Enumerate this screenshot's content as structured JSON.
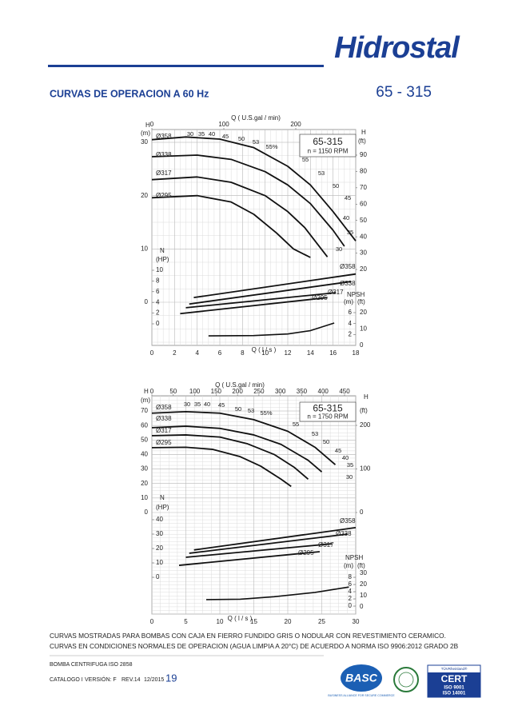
{
  "header": {
    "logo": "Hidrostal",
    "title": "CURVAS DE OPERACION A 60 Hz",
    "model": "65 - 315"
  },
  "charts": [
    {
      "model": "65-315",
      "speed": "n = 1150 RPM",
      "q_lps": {
        "label": "Q ( l / s )",
        "lim": [
          0,
          18
        ],
        "ticks": [
          0,
          2,
          4,
          6,
          8,
          10,
          12,
          14,
          16,
          18
        ]
      },
      "q_gpm": {
        "label": "Q ( U.S.gal / min)",
        "lim": [
          0,
          200
        ],
        "ticks": [
          0,
          100,
          200
        ]
      },
      "h_m": {
        "name": "H",
        "unit": "(m)",
        "lim": [
          0,
          30
        ],
        "ticks": [
          0,
          10,
          20,
          30
        ]
      },
      "h_ft": {
        "name": "H",
        "unit": "(ft)",
        "lim": [
          20,
          90
        ],
        "ticks": [
          20,
          30,
          40,
          50,
          60,
          70,
          80,
          90
        ]
      },
      "n_hp": {
        "name": "N",
        "unit": "(HP)",
        "lim": [
          0,
          10
        ],
        "ticks": [
          0,
          2,
          4,
          6,
          8,
          10
        ]
      },
      "npsh_m": {
        "name": "NPSH",
        "unit": "(m)",
        "lim": [
          0,
          6
        ],
        "ticks": [
          2,
          4,
          6
        ]
      },
      "npsh_ft": {
        "unit": "(ft)",
        "lim": [
          0,
          20
        ],
        "ticks": [
          0,
          10,
          20
        ]
      },
      "efficiency_labels": [
        "30",
        "35",
        "40",
        "45",
        "50",
        "53",
        "55%",
        "55",
        "53",
        "50",
        "45",
        "40",
        "35",
        "30"
      ],
      "head_curves": [
        {
          "name": "Ø358",
          "q": [
            0,
            3,
            6,
            9,
            12,
            14,
            16,
            18
          ],
          "h": [
            30.5,
            31,
            30.6,
            29,
            25.5,
            22,
            17,
            11.5
          ]
        },
        {
          "name": "Ø338",
          "q": [
            0,
            4,
            7,
            10,
            12,
            14,
            16,
            17
          ],
          "h": [
            27.3,
            27.6,
            26.8,
            24.5,
            22,
            18.5,
            13.5,
            10.5
          ]
        },
        {
          "name": "Ø317",
          "q": [
            0,
            4,
            7,
            10,
            12,
            13.5,
            15.5
          ],
          "h": [
            23,
            23.5,
            22.5,
            20,
            17,
            14,
            8.5
          ]
        },
        {
          "name": "Ø295",
          "q": [
            0,
            4,
            7,
            9,
            11,
            12.5,
            14
          ],
          "h": [
            19.6,
            20,
            18.8,
            16.5,
            13,
            10,
            8.4
          ]
        }
      ],
      "power_curves": [
        {
          "name": "Ø358",
          "q": [
            3.7,
            18
          ],
          "n": [
            4.9,
            9.3
          ]
        },
        {
          "name": "Ø338",
          "q": [
            3.3,
            17.6
          ],
          "n": [
            3.7,
            7.9
          ]
        },
        {
          "name": "Ø317",
          "q": [
            3,
            16.2
          ],
          "n": [
            3,
            5.8
          ]
        },
        {
          "name": "Ø295",
          "q": [
            2.5,
            15.5
          ],
          "n": [
            1.9,
            4.9
          ]
        }
      ],
      "npsh_curve": {
        "q": [
          5,
          9,
          12,
          14,
          16.1
        ],
        "npsh": [
          1.75,
          1.8,
          2.1,
          2.7,
          4.1
        ]
      }
    },
    {
      "model": "65-315",
      "speed": "n = 1750 RPM",
      "q_lps": {
        "label": "Q ( l / s )",
        "lim": [
          0,
          30
        ],
        "ticks": [
          0,
          5,
          10,
          15,
          20,
          25,
          30
        ]
      },
      "q_gpm": {
        "label": "Q ( U.S.gal / min)",
        "lim": [
          0,
          450
        ],
        "ticks": [
          0,
          50,
          100,
          150,
          200,
          250,
          300,
          350,
          400,
          450
        ]
      },
      "h_m": {
        "name": "H",
        "unit": "(m)",
        "lim": [
          0,
          70
        ],
        "ticks": [
          0,
          10,
          20,
          30,
          40,
          50,
          60,
          70
        ]
      },
      "h_ft": {
        "name": "H",
        "unit": "(ft)",
        "lim": [
          0,
          200
        ],
        "ticks": [
          0,
          100,
          200
        ]
      },
      "n_hp": {
        "name": "N",
        "unit": "(HP)",
        "lim": [
          0,
          40
        ],
        "ticks": [
          0,
          10,
          20,
          30,
          40
        ]
      },
      "npsh_m": {
        "name": "NPSH",
        "unit": "(m)",
        "lim": [
          0,
          8
        ],
        "ticks": [
          0,
          2,
          4,
          6,
          8
        ]
      },
      "npsh_ft": {
        "unit": "(ft)",
        "lim": [
          0,
          30
        ],
        "ticks": [
          0,
          10,
          20,
          30
        ]
      },
      "efficiency_labels": [
        "30",
        "35",
        "40",
        "45",
        "50",
        "53",
        "55%",
        "55",
        "53",
        "50",
        "45",
        "40",
        "35",
        "30"
      ],
      "head_curves": [
        {
          "name": "Ø358",
          "q": [
            0,
            5,
            10,
            15,
            20,
            24,
            27
          ],
          "h": [
            68.5,
            69.5,
            68.5,
            64,
            56,
            45,
            33
          ]
        },
        {
          "name": "Ø338",
          "q": [
            0,
            5,
            10,
            15,
            19,
            23,
            25
          ],
          "h": [
            58.5,
            59.5,
            58,
            53.5,
            47,
            36,
            28
          ]
        },
        {
          "name": "Ø317",
          "q": [
            0,
            5,
            10,
            14,
            18,
            21,
            23
          ],
          "h": [
            53,
            53.5,
            52,
            47.5,
            40,
            31,
            23
          ]
        },
        {
          "name": "Ø295",
          "q": [
            0,
            5,
            9,
            13,
            16,
            19,
            20.5
          ],
          "h": [
            44.7,
            45,
            43.5,
            38.5,
            32,
            23,
            18
          ]
        }
      ],
      "power_curves": [
        {
          "name": "Ø358",
          "q": [
            6.2,
            30
          ],
          "n": [
            19,
            34.5
          ]
        },
        {
          "name": "Ø338",
          "q": [
            5.5,
            28.8
          ],
          "n": [
            16.7,
            30
          ]
        },
        {
          "name": "Ø317",
          "q": [
            5,
            26.5
          ],
          "n": [
            13.9,
            23.3
          ]
        },
        {
          "name": "Ø295",
          "q": [
            4,
            24.7
          ],
          "n": [
            8.3,
            17.8
          ]
        }
      ],
      "npsh_curve": {
        "q": [
          8,
          13,
          18,
          24,
          29
        ],
        "npsh": [
          1.8,
          1.9,
          2.6,
          3.8,
          5.3
        ]
      }
    }
  ],
  "notes": [
    "CURVAS MOSTRADAS PARA BOMBAS CON CAJA EN FIERRO FUNDIDO GRIS O NODULAR CON REVESTIMIENTO CERAMICO.",
    "CURVAS EN CONDICIONES NORMALES DE OPERACION (AGUA LIMPIA A 20°C) DE ACUERDO A NORMA ISO 9906:2012 GRADO 2B"
  ],
  "footer": {
    "product": "BOMBA  CENTRIFUGA ISO 2858",
    "catalog": "CATALOGO I",
    "version": "VERSIÓN: F",
    "revision": "REV.14",
    "date": "12/2015",
    "page": "19",
    "basc": {
      "logo": "BASC",
      "text": "BUSINESS ALLIANCE FOR SECURE COMMERCE"
    },
    "cert": {
      "brand": "TÜVRheinland®",
      "title": "CERT",
      "iso1": "ISO  9001",
      "iso2": "ISO 14001"
    }
  }
}
